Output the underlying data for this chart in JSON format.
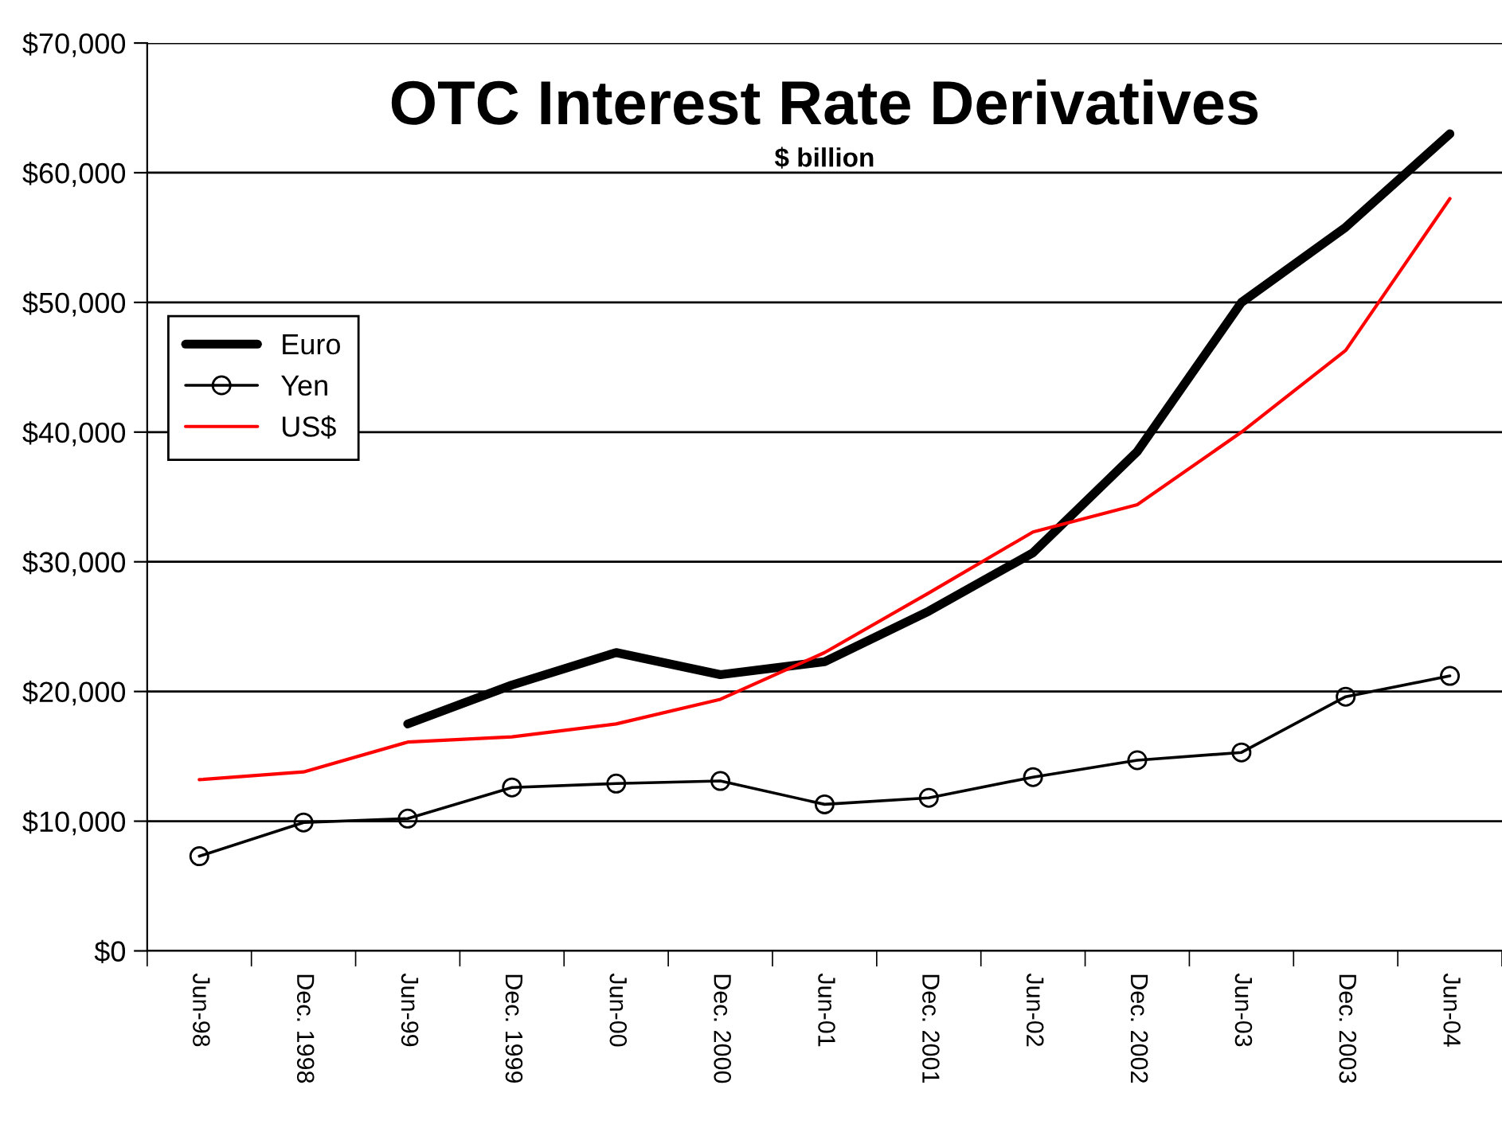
{
  "chart_data": {
    "type": "line",
    "title": "OTC Interest Rate Derivatives",
    "subtitle": "$ billion",
    "categories": [
      "Jun-98",
      "Dec. 1998",
      "Jun-99",
      "Dec. 1999",
      "Jun-00",
      "Dec. 2000",
      "Jun-01",
      "Dec. 2001",
      "Jun-02",
      "Dec. 2002",
      "Jun-03",
      "Dec. 2003",
      "Jun-04"
    ],
    "series": [
      {
        "name": "Euro",
        "color": "#000000",
        "values": [
          null,
          null,
          17500,
          20500,
          23000,
          21300,
          22300,
          26200,
          30700,
          38500,
          50000,
          55800,
          63000
        ]
      },
      {
        "name": "Yen",
        "color": "#000000",
        "marker": "circle",
        "values": [
          7300,
          9900,
          10200,
          12600,
          12900,
          13100,
          11300,
          11800,
          13400,
          14700,
          15300,
          19600,
          21200
        ]
      },
      {
        "name": "US$",
        "color": "#ff0000",
        "values": [
          13200,
          13800,
          16100,
          16500,
          17500,
          19400,
          23000,
          27600,
          32300,
          34400,
          40000,
          46300,
          58000
        ]
      }
    ],
    "ylim": [
      0,
      70000
    ],
    "yticks": [
      {
        "value": 0,
        "label": "$0"
      },
      {
        "value": 10000,
        "label": "$10,000"
      },
      {
        "value": 20000,
        "label": "$20,000"
      },
      {
        "value": 30000,
        "label": "$30,000"
      },
      {
        "value": 40000,
        "label": "$40,000"
      },
      {
        "value": 50000,
        "label": "$50,000"
      },
      {
        "value": 60000,
        "label": "$60,000"
      },
      {
        "value": 70000,
        "label": "$70,000"
      }
    ],
    "grid": "y",
    "legend": "upper left"
  }
}
